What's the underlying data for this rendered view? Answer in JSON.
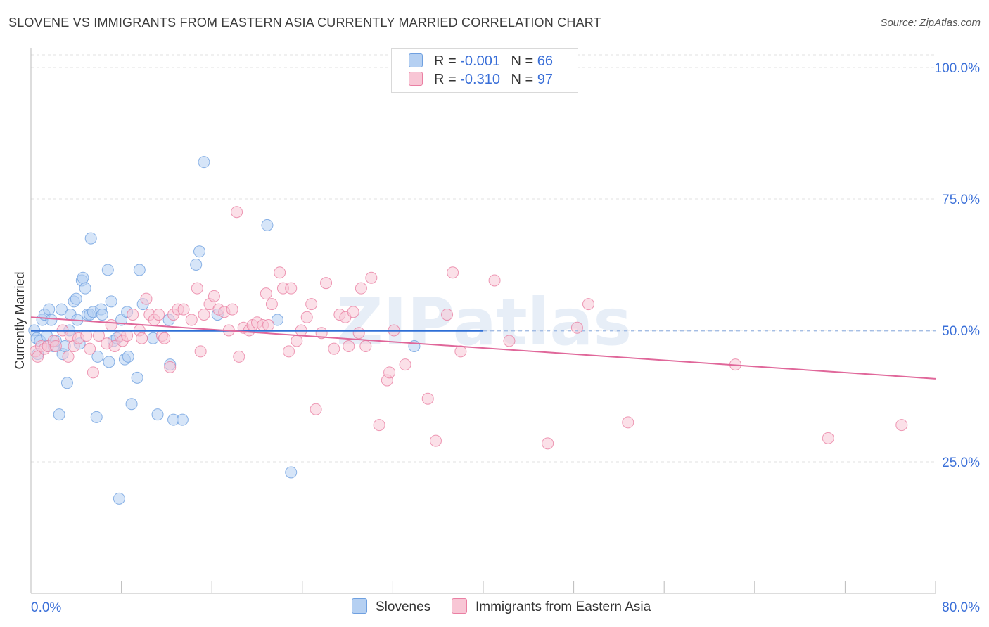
{
  "title": "SLOVENE VS IMMIGRANTS FROM EASTERN ASIA CURRENTLY MARRIED CORRELATION CHART",
  "source": "Source: ZipAtlas.com",
  "watermark": "ZIPatlas",
  "legend": {
    "rows": [
      {
        "r_label": "R =",
        "r_value": "-0.001",
        "n_label": "N =",
        "n_value": "66",
        "color": "#9ec2ef"
      },
      {
        "r_label": "R =",
        "r_value": "-0.310",
        "n_label": "N =",
        "n_value": "97",
        "color": "#f5b8cb"
      }
    ]
  },
  "bottom_legend": {
    "items": [
      {
        "label": "Slovenes",
        "color": "#b5d0f2"
      },
      {
        "label": "Immigrants from Eastern Asia",
        "color": "#f8c6d5"
      }
    ]
  },
  "chart_data": {
    "type": "scatter",
    "title": "SLOVENE VS IMMIGRANTS FROM EASTERN ASIA CURRENTLY MARRIED CORRELATION CHART",
    "xlabel": "",
    "ylabel": "Currently Married",
    "xlim": [
      0,
      80
    ],
    "ylim": [
      0,
      105
    ],
    "x_tick_labels": [
      "0.0%",
      "80.0%"
    ],
    "y_ticks": [
      25,
      50,
      75,
      100
    ],
    "y_tick_labels": [
      "25.0%",
      "50.0%",
      "75.0%",
      "100.0%"
    ],
    "grid": true,
    "legend_position": "top-center",
    "series": [
      {
        "name": "Slovenes",
        "color": "#6fa0e0",
        "fill": "#b5d0f2",
        "points": [
          [
            0.3,
            50
          ],
          [
            0.5,
            48.5
          ],
          [
            0.6,
            45.5
          ],
          [
            0.8,
            48
          ],
          [
            1.0,
            52
          ],
          [
            1.2,
            53
          ],
          [
            1.4,
            49
          ],
          [
            1.5,
            47
          ],
          [
            1.6,
            54
          ],
          [
            1.8,
            52
          ],
          [
            2.0,
            47
          ],
          [
            2.2,
            48
          ],
          [
            2.5,
            34
          ],
          [
            2.7,
            54
          ],
          [
            2.8,
            45.5
          ],
          [
            3.0,
            47
          ],
          [
            3.2,
            40
          ],
          [
            3.4,
            50
          ],
          [
            3.5,
            53
          ],
          [
            3.8,
            55.5
          ],
          [
            4.0,
            56
          ],
          [
            4.1,
            52
          ],
          [
            4.3,
            47.5
          ],
          [
            4.5,
            59.5
          ],
          [
            4.6,
            60
          ],
          [
            4.8,
            58
          ],
          [
            5.0,
            53
          ],
          [
            5.2,
            53
          ],
          [
            5.3,
            67.5
          ],
          [
            5.5,
            53.5
          ],
          [
            5.8,
            33.5
          ],
          [
            5.9,
            45
          ],
          [
            6.2,
            54
          ],
          [
            6.3,
            53
          ],
          [
            6.8,
            61.5
          ],
          [
            6.9,
            44
          ],
          [
            7.1,
            55.5
          ],
          [
            7.3,
            48
          ],
          [
            7.6,
            48.5
          ],
          [
            7.8,
            18
          ],
          [
            8.0,
            52
          ],
          [
            8.3,
            44.5
          ],
          [
            8.5,
            53.5
          ],
          [
            8.6,
            45
          ],
          [
            8.9,
            36
          ],
          [
            9.4,
            41
          ],
          [
            9.6,
            61.5
          ],
          [
            9.9,
            55
          ],
          [
            10.8,
            48.5
          ],
          [
            11.2,
            34
          ],
          [
            12.2,
            52
          ],
          [
            12.3,
            43.5
          ],
          [
            12.6,
            33
          ],
          [
            13.4,
            33
          ],
          [
            14.6,
            62.5
          ],
          [
            14.9,
            65
          ],
          [
            15.3,
            82
          ],
          [
            16.5,
            53
          ],
          [
            20.9,
            70
          ],
          [
            21.8,
            52
          ],
          [
            23.0,
            23
          ],
          [
            33.9,
            47
          ]
        ],
        "trend": {
          "x": [
            0,
            40
          ],
          "y": [
            49.9,
            49.9
          ]
        }
      },
      {
        "name": "Immigrants from Eastern Asia",
        "color": "#ea7fa3",
        "fill": "#f8c6d5",
        "points": [
          [
            0.4,
            46
          ],
          [
            0.6,
            45
          ],
          [
            0.9,
            47
          ],
          [
            1.2,
            46.5
          ],
          [
            1.5,
            47
          ],
          [
            2.0,
            48
          ],
          [
            2.2,
            47
          ],
          [
            2.8,
            50
          ],
          [
            3.3,
            45
          ],
          [
            3.5,
            49
          ],
          [
            3.8,
            47
          ],
          [
            4.2,
            48.5
          ],
          [
            4.9,
            49
          ],
          [
            5.2,
            46.5
          ],
          [
            5.5,
            42
          ],
          [
            6.0,
            49
          ],
          [
            6.7,
            47.5
          ],
          [
            7.1,
            51
          ],
          [
            7.4,
            47
          ],
          [
            7.9,
            49
          ],
          [
            8.1,
            48
          ],
          [
            8.5,
            49
          ],
          [
            9.0,
            53
          ],
          [
            9.6,
            50
          ],
          [
            9.8,
            48.5
          ],
          [
            10.2,
            56
          ],
          [
            10.5,
            53
          ],
          [
            10.9,
            52
          ],
          [
            11.3,
            53
          ],
          [
            11.6,
            49
          ],
          [
            11.8,
            48.5
          ],
          [
            12.3,
            43
          ],
          [
            12.6,
            53
          ],
          [
            13.0,
            54
          ],
          [
            13.5,
            54
          ],
          [
            14.2,
            52
          ],
          [
            14.7,
            58
          ],
          [
            15.0,
            46
          ],
          [
            15.3,
            53
          ],
          [
            15.8,
            55
          ],
          [
            16.2,
            56.5
          ],
          [
            16.6,
            54
          ],
          [
            17.1,
            53.5
          ],
          [
            17.5,
            50
          ],
          [
            17.8,
            54
          ],
          [
            18.2,
            72.5
          ],
          [
            18.4,
            45
          ],
          [
            18.8,
            50.5
          ],
          [
            19.3,
            50
          ],
          [
            19.6,
            51
          ],
          [
            20.0,
            51.5
          ],
          [
            20.5,
            51
          ],
          [
            20.8,
            57
          ],
          [
            21.0,
            51
          ],
          [
            21.3,
            55
          ],
          [
            22.0,
            61
          ],
          [
            22.3,
            58
          ],
          [
            22.8,
            46
          ],
          [
            23.0,
            58
          ],
          [
            23.5,
            48
          ],
          [
            23.9,
            50
          ],
          [
            24.4,
            52.5
          ],
          [
            24.8,
            55
          ],
          [
            25.2,
            35
          ],
          [
            25.7,
            49.5
          ],
          [
            26.1,
            59
          ],
          [
            26.8,
            46.5
          ],
          [
            27.3,
            53
          ],
          [
            27.8,
            52.5
          ],
          [
            28.1,
            47
          ],
          [
            28.5,
            53.5
          ],
          [
            29.0,
            49.5
          ],
          [
            29.2,
            58
          ],
          [
            29.6,
            47
          ],
          [
            30.1,
            60
          ],
          [
            30.8,
            32
          ],
          [
            31.5,
            40.5
          ],
          [
            31.7,
            42
          ],
          [
            32.1,
            50
          ],
          [
            33.1,
            43.5
          ],
          [
            35.1,
            37
          ],
          [
            35.8,
            29
          ],
          [
            36.8,
            53
          ],
          [
            37.3,
            61
          ],
          [
            38.0,
            46
          ],
          [
            41.0,
            59.5
          ],
          [
            42.3,
            48
          ],
          [
            45.7,
            28.5
          ],
          [
            48.3,
            50.5
          ],
          [
            49.3,
            55
          ],
          [
            52.8,
            32.5
          ],
          [
            62.3,
            43.5
          ],
          [
            70.5,
            29.5
          ],
          [
            77.0,
            32
          ]
        ],
        "trend": {
          "x": [
            0,
            80
          ],
          "y": [
            52.5,
            40.8
          ]
        }
      }
    ]
  }
}
